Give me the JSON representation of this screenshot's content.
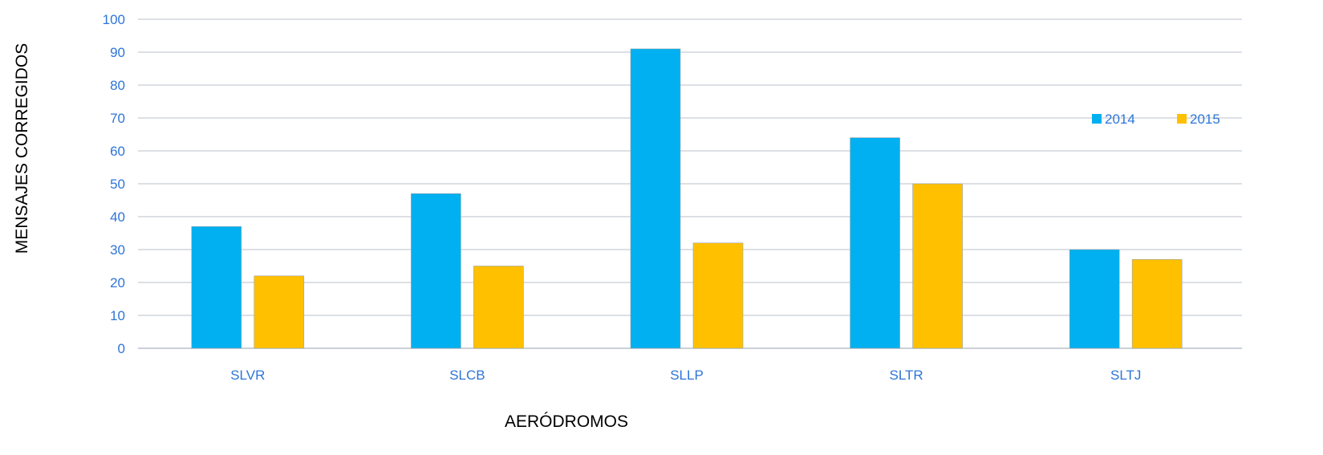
{
  "chart_data": {
    "type": "bar",
    "title": "",
    "xlabel": "AERÓDROMOS",
    "ylabel": "MENSAJES CORREGIDOS",
    "categories": [
      "SLVR",
      "SLCB",
      "SLLP",
      "SLTR",
      "SLTJ"
    ],
    "series": [
      {
        "name": "2014",
        "values": [
          37,
          47,
          91,
          64,
          30
        ],
        "color": "#00b0f0"
      },
      {
        "name": "2015",
        "values": [
          22,
          25,
          32,
          50,
          27
        ],
        "color": "#ffc000"
      }
    ],
    "ylim": [
      0,
      100
    ],
    "yticks": [
      0,
      10,
      20,
      30,
      40,
      50,
      60,
      70,
      80,
      90,
      100
    ],
    "grid": true,
    "legend_position": "right",
    "colors": {
      "tick_label": "#2e75d6",
      "grid": "#b9c0cb",
      "axis_title": "#000000"
    }
  }
}
